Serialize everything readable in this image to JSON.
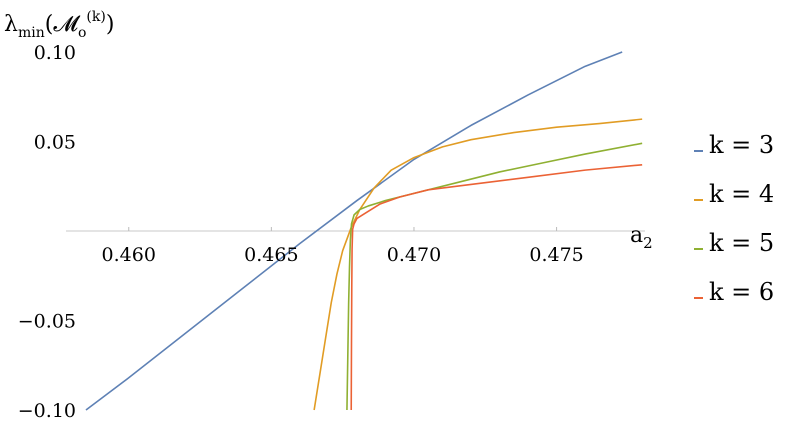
{
  "chart_data": {
    "type": "line",
    "xlabel": "a₂",
    "ylabel": "λ_min(𝓜_o^(k))",
    "xlim": [
      0.4578,
      0.4781
    ],
    "ylim": [
      -0.1,
      0.1
    ],
    "x_ticks": [
      {
        "value": 0.46,
        "label": "0.460"
      },
      {
        "value": 0.465,
        "label": "0.465"
      },
      {
        "value": 0.47,
        "label": "0.470"
      },
      {
        "value": 0.475,
        "label": "0.475"
      }
    ],
    "y_ticks": [
      {
        "value": 0.1,
        "label": "0.10"
      },
      {
        "value": 0.05,
        "label": "0.05"
      },
      {
        "value": -0.05,
        "label": "−0.05"
      },
      {
        "value": -0.1,
        "label": "−0.10"
      }
    ],
    "grid": false,
    "legend_position": "right",
    "series": [
      {
        "name": "k = 3",
        "color": "#5e81b5",
        "x": [
          0.4585,
          0.46,
          0.462,
          0.464,
          0.466,
          0.468,
          0.47,
          0.472,
          0.474,
          0.476,
          0.4773
        ],
        "y": [
          -0.1,
          -0.082,
          -0.057,
          -0.032,
          -0.007,
          0.017,
          0.04,
          0.059,
          0.076,
          0.092,
          0.1
        ]
      },
      {
        "name": "k = 4",
        "color": "#e19c24",
        "x": [
          0.4665,
          0.4667,
          0.4669,
          0.4671,
          0.4673,
          0.4675,
          0.4678,
          0.4681,
          0.4686,
          0.4692,
          0.47,
          0.471,
          0.472,
          0.4735,
          0.475,
          0.4765,
          0.478
        ],
        "y": [
          -0.1,
          -0.08,
          -0.06,
          -0.04,
          -0.024,
          -0.011,
          0.002,
          0.012,
          0.024,
          0.034,
          0.041,
          0.047,
          0.051,
          0.055,
          0.058,
          0.06,
          0.0625
        ]
      },
      {
        "name": "k = 5",
        "color": "#8fb032",
        "x": [
          0.46765,
          0.46768,
          0.46771,
          0.46774,
          0.46777,
          0.46781,
          0.4679,
          0.4681,
          0.4684,
          0.469,
          0.47,
          0.4715,
          0.473,
          0.4745,
          0.476,
          0.478
        ],
        "y": [
          -0.1,
          -0.07,
          -0.04,
          -0.02,
          -0.005,
          0.004,
          0.009,
          0.012,
          0.014,
          0.017,
          0.021,
          0.027,
          0.033,
          0.038,
          0.043,
          0.049
        ]
      },
      {
        "name": "k = 6",
        "color": "#eb6235",
        "x": [
          0.4678,
          0.46781,
          0.46782,
          0.46783,
          0.46785,
          0.4679,
          0.468,
          0.4683,
          0.4688,
          0.4695,
          0.4705,
          0.472,
          0.474,
          0.476,
          0.478
        ],
        "y": [
          -0.1,
          -0.06,
          -0.03,
          -0.01,
          0.001,
          0.004,
          0.007,
          0.01,
          0.015,
          0.019,
          0.023,
          0.026,
          0.03,
          0.034,
          0.037
        ]
      }
    ]
  }
}
